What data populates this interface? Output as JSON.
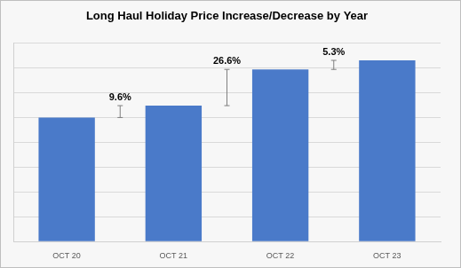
{
  "chart_data": {
    "type": "bar",
    "title": "Long Haul Holiday Price Increase/Decrease by Year",
    "categories": [
      "OCT 20",
      "OCT 21",
      "OCT 22",
      "OCT 23"
    ],
    "values": [
      100,
      109.6,
      138.8,
      146.1
    ],
    "color": "#4a7ac9",
    "ylim": [
      0,
      160
    ],
    "yticks": [
      0,
      20,
      40,
      60,
      80,
      100,
      120,
      140,
      160
    ],
    "grid": true,
    "tick_labels": "x",
    "annotations": [
      "9.6%",
      "26.6%",
      "5.3%"
    ]
  }
}
